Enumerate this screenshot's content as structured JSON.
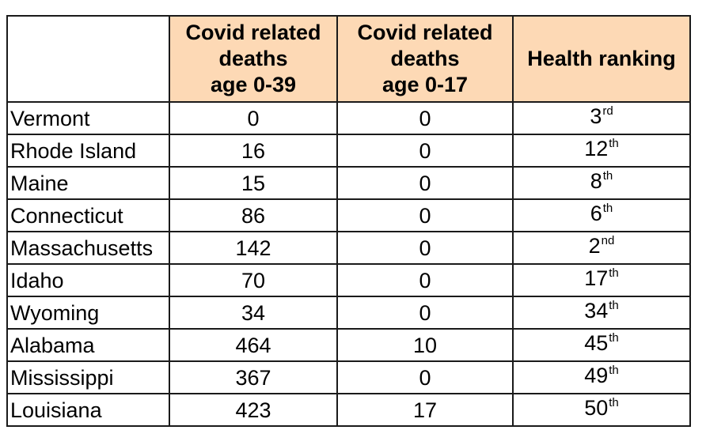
{
  "table": {
    "headers": {
      "state": "",
      "deaths_0_39": [
        "Covid related",
        "deaths",
        "age 0-39"
      ],
      "deaths_0_17": [
        "Covid related",
        "deaths",
        "age 0-17"
      ],
      "health_ranking": "Health ranking"
    },
    "header_fill_color": "#fdd9b5",
    "rows": [
      {
        "state": "Vermont",
        "deaths_0_39": "0",
        "deaths_0_17": "0",
        "rank": "3",
        "rank_suffix": "rd"
      },
      {
        "state": "Rhode Island",
        "deaths_0_39": "16",
        "deaths_0_17": "0",
        "rank": "12",
        "rank_suffix": "th"
      },
      {
        "state": "Maine",
        "deaths_0_39": "15",
        "deaths_0_17": "0",
        "rank": "8",
        "rank_suffix": "th"
      },
      {
        "state": "Connecticut",
        "deaths_0_39": "86",
        "deaths_0_17": "0",
        "rank": "6",
        "rank_suffix": "th"
      },
      {
        "state": "Massachusetts",
        "deaths_0_39": "142",
        "deaths_0_17": "0",
        "rank": "2",
        "rank_suffix": "nd"
      },
      {
        "state": "Idaho",
        "deaths_0_39": "70",
        "deaths_0_17": "0",
        "rank": "17",
        "rank_suffix": "th"
      },
      {
        "state": "Wyoming",
        "deaths_0_39": "34",
        "deaths_0_17": "0",
        "rank": "34",
        "rank_suffix": "th"
      },
      {
        "state": "Alabama",
        "deaths_0_39": "464",
        "deaths_0_17": "10",
        "rank": "45",
        "rank_suffix": "th"
      },
      {
        "state": "Mississippi",
        "deaths_0_39": "367",
        "deaths_0_17": "0",
        "rank": "49",
        "rank_suffix": "th"
      },
      {
        "state": "Louisiana",
        "deaths_0_39": "423",
        "deaths_0_17": "17",
        "rank": "50",
        "rank_suffix": "th"
      }
    ]
  }
}
